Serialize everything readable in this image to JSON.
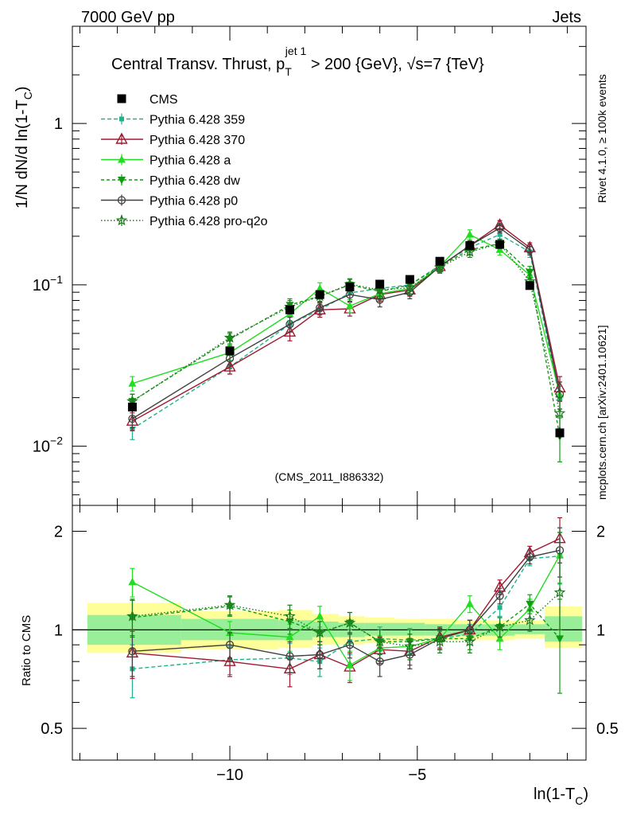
{
  "header": {
    "left": "7000 GeV pp",
    "right": "Jets"
  },
  "side_labels": {
    "rivet": "Rivet 4.1.0, ≥ 100k events",
    "mcplots": "mcplots.cern.ch [arXiv:2401.10621]"
  },
  "chart_data": [
    {
      "type": "line",
      "panel": "main",
      "title": "Central Transv. Thrust, p_T^{jet 1} > 200 {GeV}, √s=7 {TeV}",
      "title_parts": {
        "pre": "Central Transv. Thrust, p",
        "sub": "T",
        "sup": "jet 1",
        "post1": " > 200 {GeV}, ",
        "sqrt": "√",
        "post2": "s=7 {TeV}"
      },
      "ylabel": "1/N    dN/d ln(1-T_C)",
      "ylabel_parts": {
        "a": "1/N    dN/d ln(1-T",
        "sub": "C",
        "b": ")"
      },
      "xlabel": "ln(1-T_C)",
      "xlabel_parts": {
        "a": "ln(1-T",
        "sub": "C",
        "b": ")"
      },
      "yscale": "log",
      "ylim": [
        0.0043,
        4.0
      ],
      "xlim": [
        -14.2,
        -0.5
      ],
      "xticklabels": [
        "−10",
        "−5"
      ],
      "xticks": [
        -10,
        -5
      ],
      "yticklabels": [
        "1",
        "10^{-1}",
        "10^{-2}"
      ],
      "ytick_label_parts": [
        {
          "value": 1,
          "base": "1",
          "exp": ""
        },
        {
          "value": 0.1,
          "base": "10",
          "exp": "−1"
        },
        {
          "value": 0.01,
          "base": "10",
          "exp": "−2"
        }
      ],
      "watermark": "(CMS_2011_I886332)",
      "legend_position": "top-left",
      "x": [
        -12.6,
        -10.0,
        -8.4,
        -7.6,
        -6.8,
        -6.0,
        -5.2,
        -4.4,
        -3.6,
        -2.8,
        -2.0,
        -1.2
      ],
      "series": [
        {
          "name": "CMS",
          "style": "data",
          "color": "#000000",
          "marker": "square",
          "dash": "",
          "values": [
            0.0175,
            0.039,
            0.07,
            0.087,
            0.097,
            0.101,
            0.108,
            0.14,
            0.175,
            0.178,
            0.099,
            0.0121
          ],
          "errors": [
            0.0012,
            0.002,
            0.003,
            0.003,
            0.003,
            0.003,
            0.003,
            0.004,
            0.004,
            0.004,
            0.003,
            0.001
          ]
        },
        {
          "name": "Pythia 6.428 359",
          "color": "#20b28a",
          "marker": "small-square",
          "dash": "5,3",
          "values": [
            0.0128,
            0.031,
            0.057,
            0.07,
            0.089,
            0.095,
            0.1,
            0.132,
            0.17,
            0.205,
            0.16,
            0.0195
          ],
          "errors": [
            0.0018,
            0.003,
            0.006,
            0.007,
            0.008,
            0.008,
            0.008,
            0.01,
            0.012,
            0.014,
            0.012,
            0.004
          ]
        },
        {
          "name": "Pythia 6.428 370",
          "color": "#a01830",
          "marker": "open-triangle",
          "dash": "",
          "values": [
            0.0143,
            0.031,
            0.051,
            0.07,
            0.071,
            0.087,
            0.093,
            0.13,
            0.175,
            0.235,
            0.17,
            0.023
          ],
          "errors": [
            0.0018,
            0.003,
            0.006,
            0.007,
            0.007,
            0.008,
            0.008,
            0.01,
            0.012,
            0.015,
            0.012,
            0.004
          ]
        },
        {
          "name": "Pythia 6.428 a",
          "color": "#22dd22",
          "marker": "filled-triangle",
          "dash": "",
          "values": [
            0.0245,
            0.038,
            0.066,
            0.095,
            0.074,
            0.088,
            0.095,
            0.13,
            0.205,
            0.165,
            0.115,
            0.021
          ],
          "errors": [
            0.0025,
            0.004,
            0.006,
            0.008,
            0.007,
            0.008,
            0.008,
            0.01,
            0.014,
            0.012,
            0.01,
            0.004
          ]
        },
        {
          "name": "Pythia 6.428 dw",
          "color": "#109c10",
          "marker": "filled-down-triangle",
          "dash": "4,3",
          "values": [
            0.019,
            0.046,
            0.075,
            0.085,
            0.1,
            0.091,
            0.1,
            0.13,
            0.165,
            0.18,
            0.12,
            0.0115
          ],
          "errors": [
            0.002,
            0.004,
            0.007,
            0.007,
            0.008,
            0.008,
            0.008,
            0.01,
            0.012,
            0.012,
            0.01,
            0.0035
          ]
        },
        {
          "name": "Pythia 6.428 p0",
          "color": "#404040",
          "marker": "open-circle",
          "dash": "",
          "values": [
            0.0148,
            0.035,
            0.057,
            0.072,
            0.087,
            0.081,
            0.09,
            0.13,
            0.175,
            0.225,
            0.165,
            0.021
          ],
          "errors": [
            0.0018,
            0.003,
            0.006,
            0.007,
            0.008,
            0.008,
            0.008,
            0.01,
            0.012,
            0.015,
            0.012,
            0.004
          ]
        },
        {
          "name": "Pythia 6.428 pro-q2o",
          "color": "#1e7a1e",
          "marker": "open-star",
          "dash": "1.5,2.5",
          "values": [
            0.019,
            0.047,
            0.073,
            0.085,
            0.101,
            0.093,
            0.096,
            0.128,
            0.16,
            0.18,
            0.105,
            0.016
          ],
          "errors": [
            0.002,
            0.004,
            0.007,
            0.007,
            0.008,
            0.008,
            0.008,
            0.01,
            0.012,
            0.012,
            0.01,
            0.004
          ]
        }
      ]
    },
    {
      "type": "line",
      "panel": "ratio",
      "ylabel": "Ratio to CMS",
      "yscale": "log",
      "ylim": [
        0.4,
        2.4
      ],
      "yticklabels": [
        "2",
        "1",
        "0.5"
      ],
      "yticks": [
        2,
        1,
        0.5
      ],
      "band_edges": [
        -13.8,
        -11.3,
        -8.7,
        -7.8,
        -7.1,
        -6.4,
        -5.6,
        -4.8,
        -4.0,
        -3.2,
        -2.4,
        -1.6,
        -0.6
      ],
      "band_inner": [
        [
          0.9,
          1.11
        ],
        [
          0.93,
          1.08
        ],
        [
          0.93,
          1.07
        ],
        [
          0.95,
          1.06
        ],
        [
          0.95,
          1.05
        ],
        [
          0.96,
          1.05
        ],
        [
          0.96,
          1.05
        ],
        [
          0.96,
          1.04
        ],
        [
          0.96,
          1.04
        ],
        [
          0.96,
          1.04
        ],
        [
          0.97,
          1.04
        ],
        [
          0.92,
          1.1
        ]
      ],
      "band_outer": [
        [
          0.85,
          1.21
        ],
        [
          0.87,
          1.14
        ],
        [
          0.88,
          1.15
        ],
        [
          0.9,
          1.12
        ],
        [
          0.9,
          1.1
        ],
        [
          0.91,
          1.09
        ],
        [
          0.92,
          1.08
        ],
        [
          0.93,
          1.08
        ],
        [
          0.93,
          1.07
        ],
        [
          0.93,
          1.07
        ],
        [
          0.94,
          1.07
        ],
        [
          0.88,
          1.18
        ]
      ],
      "band_colors": {
        "inner": "#99ee99",
        "outer": "#ffff99"
      },
      "series": [
        {
          "name": "Pythia 6.428 359",
          "values": [
            0.76,
            0.81,
            0.82,
            0.8,
            0.92,
            0.94,
            0.93,
            0.94,
            0.97,
            1.17,
            1.65,
            1.68
          ]
        },
        {
          "name": "Pythia 6.428 370",
          "values": [
            0.85,
            0.8,
            0.76,
            0.84,
            0.77,
            0.87,
            0.86,
            0.95,
            1.0,
            1.35,
            1.72,
            1.9
          ]
        },
        {
          "name": "Pythia 6.428 a",
          "values": [
            1.4,
            0.98,
            0.95,
            1.1,
            0.78,
            0.88,
            0.89,
            0.94,
            1.2,
            0.94,
            1.16,
            1.69
          ]
        },
        {
          "name": "Pythia 6.428 dw",
          "values": [
            1.09,
            1.18,
            1.06,
            0.98,
            1.05,
            0.92,
            0.92,
            0.94,
            0.94,
            1.02,
            1.2,
            0.94
          ]
        },
        {
          "name": "Pythia 6.428 p0",
          "values": [
            0.86,
            0.9,
            0.83,
            0.84,
            0.9,
            0.8,
            0.84,
            0.94,
            1.0,
            1.27,
            1.67,
            1.75
          ]
        },
        {
          "name": "Pythia 6.428 pro-q2o",
          "values": [
            1.1,
            1.19,
            1.1,
            0.98,
            1.05,
            0.92,
            0.89,
            0.92,
            0.92,
            1.02,
            1.07,
            1.3
          ]
        }
      ],
      "errors": [
        0.14,
        0.08,
        0.09,
        0.08,
        0.08,
        0.08,
        0.08,
        0.07,
        0.07,
        0.07,
        0.08,
        0.3
      ]
    }
  ]
}
